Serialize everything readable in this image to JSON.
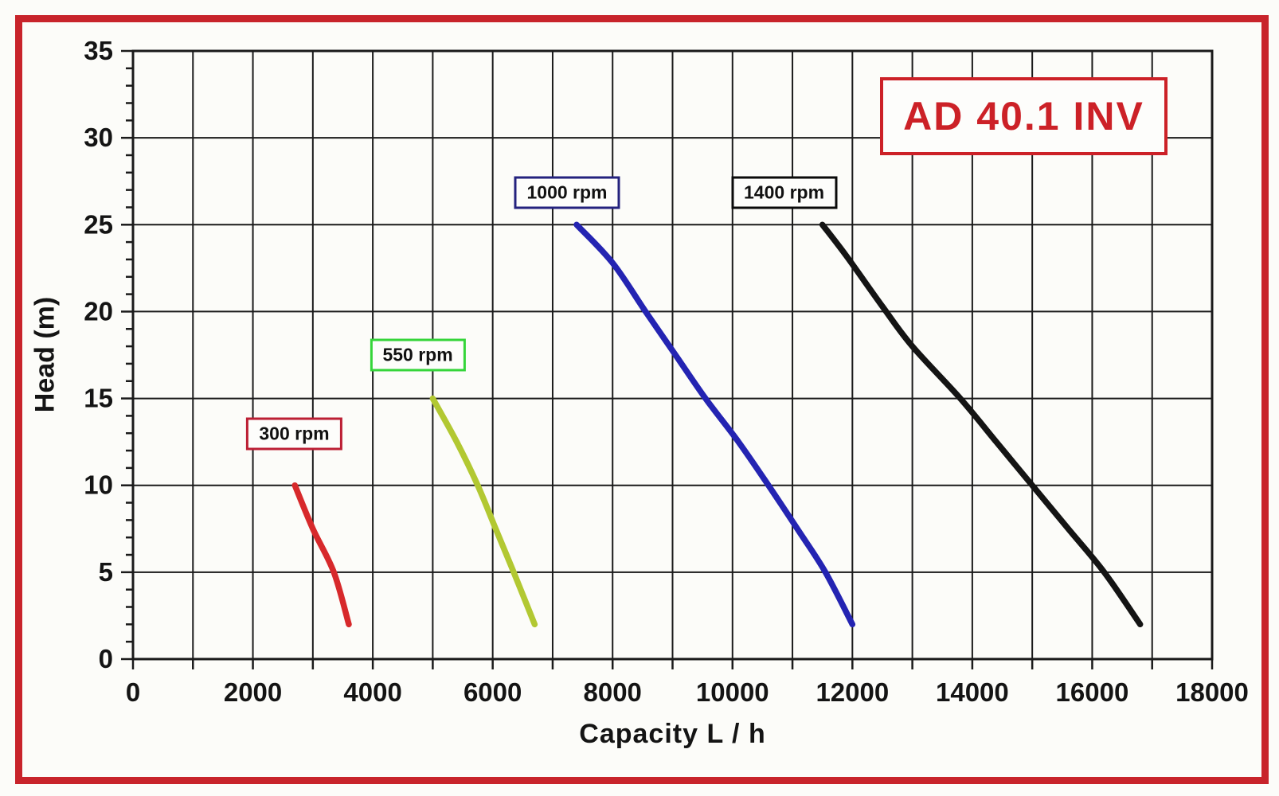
{
  "title_box": {
    "text": "AD 40.1 INV",
    "color": "#cc2127",
    "border_color": "#cc2127"
  },
  "page_border_color": "#c8242b",
  "chart_data": {
    "type": "line",
    "title": "AD 40.1 INV",
    "xlabel": "Capacity  L / h",
    "ylabel": "Head (m)",
    "xlim": [
      0,
      18000
    ],
    "ylim": [
      0,
      35
    ],
    "x_ticks": [
      0,
      2000,
      4000,
      6000,
      8000,
      10000,
      12000,
      14000,
      16000,
      18000
    ],
    "y_ticks": [
      0,
      5,
      10,
      15,
      20,
      25,
      30,
      35
    ],
    "x_grid_step": 1000,
    "y_grid_step": 5,
    "y_minor_tick_step": 1,
    "grid": true,
    "grid_color": "#1a1a1a",
    "legend_position": "inline-curve-labels",
    "series": [
      {
        "name": "300 rpm",
        "color": "#d7292b",
        "label_border_color": "#bc1f34",
        "label_pos": [
          2690,
          12.95
        ],
        "points": [
          [
            2700,
            10
          ],
          [
            3000,
            7.5
          ],
          [
            3350,
            5
          ],
          [
            3600,
            2
          ]
        ]
      },
      {
        "name": "550 rpm",
        "color": "#b2c832",
        "label_border_color": "#35d53a",
        "label_pos": [
          4750,
          17.5
        ],
        "points": [
          [
            5000,
            15
          ],
          [
            5400,
            12.5
          ],
          [
            5750,
            10
          ],
          [
            6050,
            7.5
          ],
          [
            6350,
            5
          ],
          [
            6700,
            2
          ]
        ]
      },
      {
        "name": "1000 rpm",
        "color": "#2424b2",
        "label_border_color": "#24227e",
        "label_pos": [
          7240,
          26.85
        ],
        "points": [
          [
            7400,
            25
          ],
          [
            8000,
            22.8
          ],
          [
            8550,
            20
          ],
          [
            9050,
            17.5
          ],
          [
            9550,
            15
          ],
          [
            10100,
            12.5
          ],
          [
            10600,
            10
          ],
          [
            11100,
            7.4
          ],
          [
            11550,
            5
          ],
          [
            12000,
            2
          ]
        ]
      },
      {
        "name": "1400 rpm",
        "color": "#141414",
        "label_border_color": "#0a0a0a",
        "label_pos": [
          10860,
          26.85
        ],
        "points": [
          [
            11500,
            25
          ],
          [
            11900,
            23.2
          ],
          [
            12500,
            20.3
          ],
          [
            13000,
            18
          ],
          [
            13800,
            15
          ],
          [
            14400,
            12.5
          ],
          [
            15000,
            10
          ],
          [
            15600,
            7.5
          ],
          [
            16200,
            5
          ],
          [
            16800,
            2
          ]
        ]
      }
    ]
  }
}
